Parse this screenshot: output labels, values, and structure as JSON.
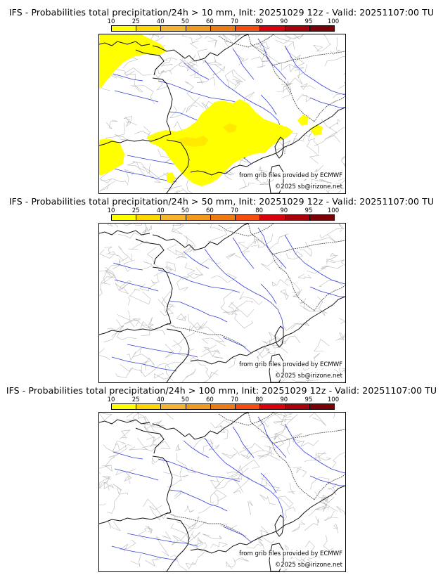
{
  "panels": [
    {
      "title": "IFS - Probabilities total precipitation/24h > 10 mm, Init: 20251029 12z - Valid: 20251107:00 TU",
      "threshold_mm": 10,
      "has_precip": true
    },
    {
      "title": "IFS - Probabilities total precipitation/24h > 50 mm, Init: 20251029 12z - Valid: 20251107:00 TU",
      "threshold_mm": 50,
      "has_precip": false
    },
    {
      "title": "IFS - Probabilities total precipitation/24h > 100 mm, Init: 20251029 12z - Valid: 20251107:00 TU",
      "threshold_mm": 100,
      "has_precip": false
    }
  ],
  "legend": {
    "ticks": [
      "10",
      "25",
      "40",
      "50",
      "60",
      "70",
      "80",
      "90",
      "95",
      "100"
    ],
    "colors": [
      "#ffff00",
      "#ffd700",
      "#f6b42d",
      "#f29a1c",
      "#ef7a10",
      "#f54d0d",
      "#d9000d",
      "#a8000b",
      "#7c0006"
    ]
  },
  "credits": {
    "source": "from grib files provided by ECMWF",
    "copyright": "©2025 sb@irizone.net"
  }
}
